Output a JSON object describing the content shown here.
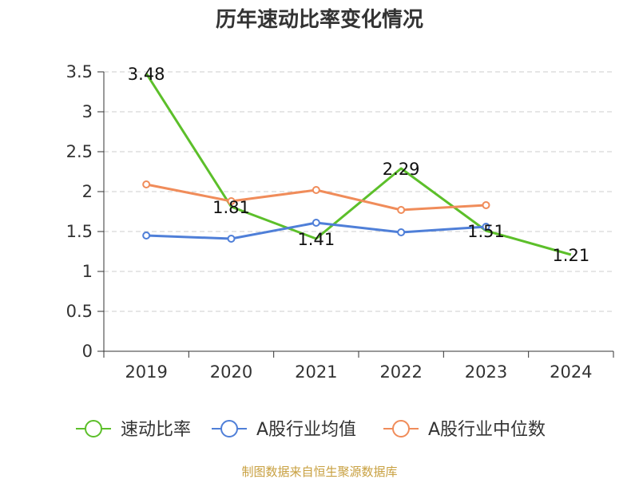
{
  "chart_data": {
    "type": "line",
    "title": "历年速动比率变化情况",
    "categories": [
      "2019",
      "2020",
      "2021",
      "2022",
      "2023",
      "2024"
    ],
    "ylim": [
      0,
      3.5
    ],
    "yticks": [
      "0",
      "0.5",
      "1",
      "1.5",
      "2",
      "2.5",
      "3",
      "3.5"
    ],
    "grid": true,
    "legend_position": "bottom",
    "series": [
      {
        "name": "速动比率",
        "color": "#5cbf2a",
        "values": [
          3.48,
          1.81,
          1.41,
          2.29,
          1.51,
          1.21
        ],
        "labels": [
          "3.48",
          "1.81",
          "1.41",
          "2.29",
          "1.51",
          "1.21"
        ],
        "show_labels": true,
        "markers": false
      },
      {
        "name": "A股行业均值",
        "color": "#4f7fd8",
        "values": [
          1.45,
          1.41,
          1.61,
          1.49,
          1.56,
          null
        ],
        "show_labels": false,
        "markers": true
      },
      {
        "name": "A股行业中位数",
        "color": "#f08c5a",
        "values": [
          2.09,
          1.88,
          2.02,
          1.77,
          1.83,
          null
        ],
        "show_labels": false,
        "markers": true
      }
    ]
  },
  "source_text": "制图数据来自恒生聚源数据库",
  "colors": {
    "source": "#c8a040",
    "grid": "#cccccc",
    "axis": "#333333"
  }
}
